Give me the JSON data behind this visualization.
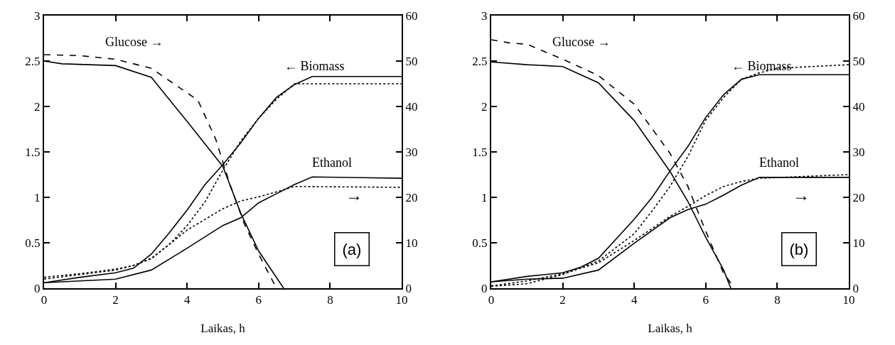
{
  "chart_data": [
    {
      "type": "line",
      "xlabel": "Laikas, h",
      "xlim": [
        0,
        10
      ],
      "xticks": [
        0,
        2,
        4,
        6,
        8,
        10
      ],
      "ylim": [
        0,
        3
      ],
      "yticks": [
        0,
        0.5,
        1,
        1.5,
        2,
        2.5,
        3
      ],
      "y2lim": [
        0,
        60
      ],
      "y2ticks": [
        0,
        10,
        20,
        30,
        40,
        50,
        60
      ],
      "grid": false,
      "marker": "none",
      "annotations": [
        "Glucose →",
        "← Biomass",
        "Ethanol",
        "→",
        "(a)"
      ],
      "series": [
        {
          "color": "#000000",
          "axis": "y2",
          "line_style": "solid",
          "x": [
            0,
            0.5,
            2,
            3,
            4,
            5,
            5.5,
            6,
            6.7
          ],
          "values": [
            50,
            49.4,
            49,
            46.4,
            36.7,
            26.8,
            16.5,
            8.2,
            0
          ]
        },
        {
          "color": "#000000",
          "axis": "y2",
          "line_style": "dashed",
          "x": [
            0,
            1,
            2,
            3,
            4,
            4.3,
            4.8,
            5.2,
            5.6,
            6,
            6.5
          ],
          "values": [
            51.4,
            51.2,
            50.4,
            48.4,
            43,
            41.4,
            32.8,
            22.8,
            14.2,
            7.5,
            0
          ]
        },
        {
          "color": "#000000",
          "line_style": "solid",
          "x": [
            0,
            1,
            2,
            2.5,
            3,
            3.5,
            4,
            4.5,
            5,
            5.5,
            6,
            6.5,
            7,
            7.5,
            10
          ],
          "values": [
            0.06,
            0.12,
            0.17,
            0.22,
            0.375,
            0.61,
            0.86,
            1.14,
            1.36,
            1.6,
            1.87,
            2.1,
            2.24,
            2.33,
            2.33
          ]
        },
        {
          "color": "#000000",
          "line_style": "dotted",
          "x": [
            0,
            1,
            2,
            2.5,
            3,
            3.5,
            4,
            4.5,
            5,
            5.5,
            6,
            6.5,
            7,
            10
          ],
          "values": [
            0.1,
            0.15,
            0.2,
            0.25,
            0.33,
            0.48,
            0.69,
            0.95,
            1.3,
            1.62,
            1.87,
            2.08,
            2.25,
            2.25
          ]
        },
        {
          "color": "#000000",
          "axis": "y2",
          "line_style": "solid",
          "x": [
            0,
            2,
            3,
            4,
            5,
            5.5,
            6,
            6.5,
            7,
            7.5,
            10
          ],
          "values": [
            1.2,
            2,
            4,
            8.8,
            13.8,
            15.5,
            18.8,
            20.8,
            22.8,
            24.5,
            24.2
          ]
        },
        {
          "color": "#000000",
          "axis": "y2",
          "line_style": "dotted",
          "x": [
            0,
            1,
            2,
            2.5,
            3,
            4,
            5,
            5.5,
            6,
            6.5,
            7,
            10
          ],
          "values": [
            2.4,
            3.2,
            4.2,
            5,
            6.5,
            12.8,
            17.5,
            19.2,
            20.1,
            21.2,
            22.4,
            22.2
          ]
        }
      ]
    },
    {
      "type": "line",
      "xlabel": "Laikas, h",
      "xlim": [
        0,
        10
      ],
      "xticks": [
        0,
        2,
        4,
        6,
        8,
        10
      ],
      "ylim": [
        0,
        3
      ],
      "yticks": [
        0,
        0.5,
        1,
        1.5,
        2,
        2.5,
        3
      ],
      "y2lim": [
        0,
        60
      ],
      "y2ticks": [
        0,
        10,
        20,
        30,
        40,
        50,
        60
      ],
      "grid": false,
      "marker": "none",
      "annotations": [
        "Glucose →",
        "← Biomass",
        "Ethanol",
        "→",
        "(b)"
      ],
      "series": [
        {
          "color": "#000000",
          "axis": "y2",
          "line_style": "solid",
          "x": [
            0,
            1,
            2,
            3,
            4,
            5,
            5.5,
            6,
            6.5,
            6.7
          ],
          "values": [
            49.8,
            49.2,
            48.8,
            45.2,
            36.9,
            25.7,
            19.1,
            11.2,
            4,
            0
          ]
        },
        {
          "color": "#000000",
          "axis": "y2",
          "line_style": "dashed",
          "x": [
            0,
            0.5,
            1,
            2,
            3,
            4,
            5,
            5.5,
            6,
            6.5,
            6.8
          ],
          "values": [
            54.7,
            54,
            53.7,
            50.4,
            46.8,
            40.5,
            29.7,
            22.4,
            12.5,
            3.3,
            0
          ]
        },
        {
          "color": "#000000",
          "line_style": "solid",
          "x": [
            0,
            1,
            2,
            2.5,
            3,
            4,
            4.5,
            5,
            5.5,
            6,
            6.5,
            7,
            7.5,
            10
          ],
          "values": [
            0.07,
            0.13,
            0.17,
            0.23,
            0.33,
            0.76,
            1.0,
            1.29,
            1.56,
            1.88,
            2.13,
            2.3,
            2.35,
            2.35
          ]
        },
        {
          "color": "#000000",
          "line_style": "dotted",
          "x": [
            0,
            1,
            2,
            3,
            4,
            4.5,
            5,
            5.5,
            6,
            6.5,
            7,
            7.5,
            8,
            10
          ],
          "values": [
            0.02,
            0.05,
            0.15,
            0.3,
            0.6,
            0.85,
            1.12,
            1.45,
            1.85,
            2.1,
            2.3,
            2.37,
            2.42,
            2.46
          ]
        },
        {
          "color": "#000000",
          "axis": "y2",
          "line_style": "solid",
          "x": [
            0,
            1,
            2,
            3,
            4,
            5,
            5.5,
            6,
            6.5,
            7,
            7.5,
            10
          ],
          "values": [
            1.4,
            2,
            2.2,
            4,
            9.9,
            15.5,
            17.3,
            18.5,
            20.5,
            22.7,
            24.4,
            24.4
          ]
        },
        {
          "color": "#000000",
          "axis": "y2",
          "line_style": "dotted",
          "x": [
            0,
            1,
            2,
            3,
            4,
            5,
            5.5,
            6,
            6.5,
            7,
            7.5,
            10
          ],
          "values": [
            0.5,
            1.6,
            3.2,
            5.6,
            10.5,
            15.8,
            18,
            20.4,
            22.4,
            23.5,
            24.2,
            25
          ]
        }
      ]
    }
  ]
}
